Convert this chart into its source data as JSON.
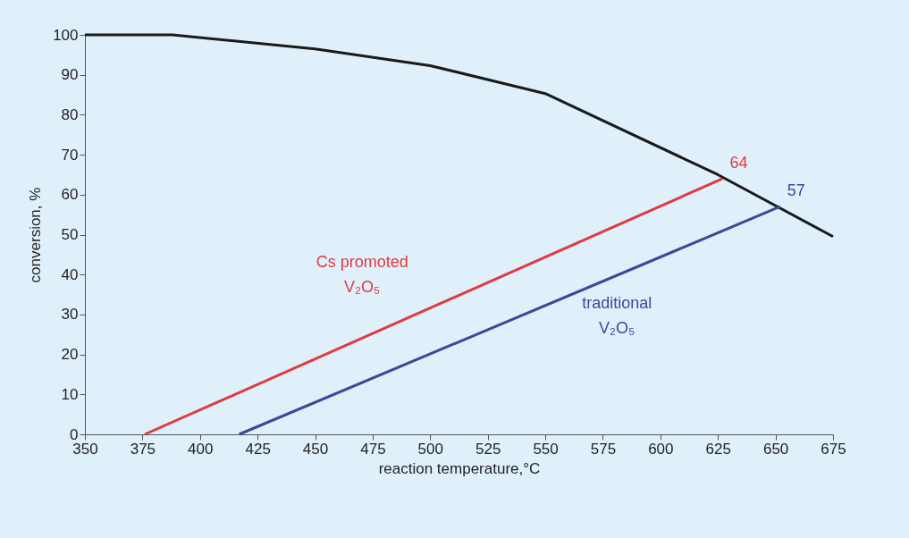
{
  "chart_data": {
    "type": "line",
    "xlabel": "reaction temperature,°C",
    "ylabel": "conversion, %",
    "xlim": [
      350,
      675
    ],
    "xticks": [
      350,
      375,
      400,
      425,
      450,
      475,
      500,
      525,
      550,
      575,
      600,
      625,
      650,
      675
    ],
    "ylim": [
      0,
      100
    ],
    "yticks": [
      0,
      10,
      20,
      30,
      40,
      50,
      60,
      70,
      80,
      90,
      100
    ],
    "grid": false,
    "marker": "none",
    "line_style": "solid",
    "series": [
      {
        "color": "#1a1a1a",
        "x": [
          350,
          388,
          450,
          500,
          550,
          625,
          675
        ],
        "values": [
          100,
          100,
          96.5,
          92.3,
          85.3,
          65,
          49.5
        ]
      },
      {
        "name": "Cs promoted V₂O₅",
        "color": "#e03a3e",
        "x": [
          376,
          627
        ],
        "values": [
          0,
          64
        ]
      },
      {
        "name": "traditional V₂O₅",
        "color": "#3d4898",
        "x": [
          417,
          652
        ],
        "values": [
          0,
          57
        ]
      }
    ],
    "annotations": [
      {
        "text": "64",
        "x": 627,
        "y": 64
      },
      {
        "text": "57",
        "x": 652,
        "y": 57
      }
    ]
  }
}
